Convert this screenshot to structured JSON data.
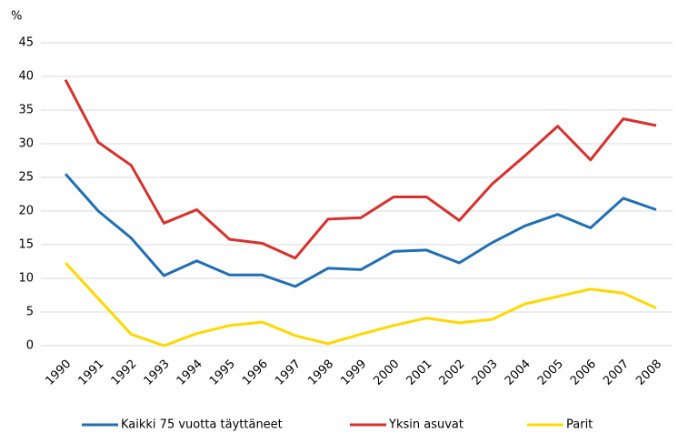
{
  "chart_data": {
    "type": "line",
    "y_unit": "%",
    "categories": [
      "1990",
      "1991",
      "1992",
      "1993",
      "1994",
      "1995",
      "1996",
      "1997",
      "1998",
      "1999",
      "2000",
      "2001",
      "2002",
      "2003",
      "2004",
      "2005",
      "2006",
      "2007",
      "2008"
    ],
    "series": [
      {
        "name": "Kaikki 75 vuotta täyttäneet",
        "color": "#1f6fb5",
        "values": [
          25.5,
          20,
          16,
          10.4,
          12.6,
          10.5,
          10.5,
          8.8,
          11.5,
          11.3,
          14,
          14.2,
          12.3,
          15.3,
          17.8,
          19.5,
          17.5,
          21.9,
          20.2
        ]
      },
      {
        "name": "Yksin asuvat",
        "color": "#d9302c",
        "values": [
          39.5,
          30.2,
          26.8,
          18.2,
          20.2,
          15.8,
          15.2,
          13,
          18.8,
          19,
          22.1,
          22.1,
          18.6,
          24,
          28.2,
          32.6,
          27.6,
          33.7,
          32.7
        ]
      },
      {
        "name": "Parit",
        "color": "#ffd800",
        "values": [
          12.3,
          7,
          1.7,
          0,
          1.8,
          3,
          3.5,
          1.5,
          0.3,
          1.7,
          3,
          4.1,
          3.4,
          3.9,
          6.2,
          7.3,
          8.4,
          7.8,
          5.6
        ]
      }
    ],
    "ylim": [
      0,
      45
    ],
    "yticks": [
      0,
      5,
      10,
      15,
      20,
      25,
      30,
      35,
      40,
      45
    ],
    "grid": true
  }
}
